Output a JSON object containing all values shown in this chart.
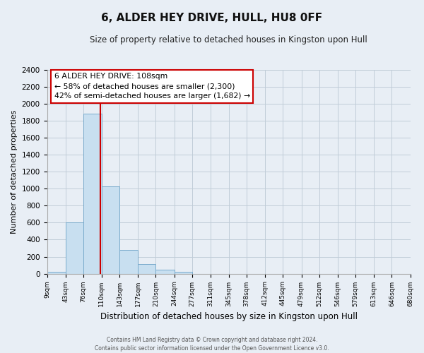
{
  "title": "6, ALDER HEY DRIVE, HULL, HU8 0FF",
  "subtitle": "Size of property relative to detached houses in Kingston upon Hull",
  "xlabel": "Distribution of detached houses by size in Kingston upon Hull",
  "ylabel": "Number of detached properties",
  "bin_edges": [
    9,
    43,
    76,
    110,
    143,
    177,
    210,
    244,
    277,
    311,
    345,
    378,
    412,
    445,
    479,
    512,
    546,
    579,
    613,
    646,
    680
  ],
  "bar_heights": [
    20,
    600,
    1880,
    1030,
    280,
    110,
    45,
    20,
    0,
    0,
    0,
    0,
    0,
    0,
    0,
    0,
    0,
    0,
    0,
    0
  ],
  "bar_color": "#c8dff0",
  "bar_edge_color": "#7aabcc",
  "vline_x": 108,
  "vline_color": "#cc0000",
  "annotation_line1": "6 ALDER HEY DRIVE: 108sqm",
  "annotation_line2": "← 58% of detached houses are smaller (2,300)",
  "annotation_line3": "42% of semi-detached houses are larger (1,682) →",
  "ylim": [
    0,
    2400
  ],
  "yticks": [
    0,
    200,
    400,
    600,
    800,
    1000,
    1200,
    1400,
    1600,
    1800,
    2000,
    2200,
    2400
  ],
  "tick_labels": [
    "9sqm",
    "43sqm",
    "76sqm",
    "110sqm",
    "143sqm",
    "177sqm",
    "210sqm",
    "244sqm",
    "277sqm",
    "311sqm",
    "345sqm",
    "378sqm",
    "412sqm",
    "445sqm",
    "479sqm",
    "512sqm",
    "546sqm",
    "579sqm",
    "613sqm",
    "646sqm",
    "680sqm"
  ],
  "footer_line1": "Contains HM Land Registry data © Crown copyright and database right 2024.",
  "footer_line2": "Contains public sector information licensed under the Open Government Licence v3.0.",
  "background_color": "#e8eef5",
  "plot_bg_color": "#e8eef5",
  "grid_color": "#c0ccd8",
  "title_fontsize": 11,
  "subtitle_fontsize": 8.5
}
